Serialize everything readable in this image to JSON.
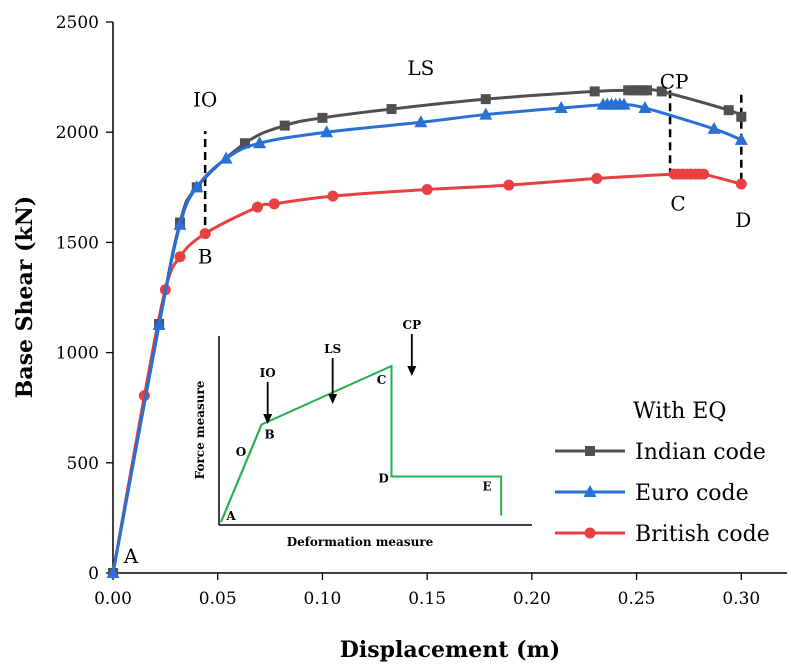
{
  "chart_data": {
    "type": "line",
    "title": "",
    "xlabel": "Displacement (m)",
    "ylabel": "Base Shear (kN)",
    "xlim": [
      0,
      0.32
    ],
    "ylim": [
      0,
      2500
    ],
    "xticks": [
      0.0,
      0.05,
      0.1,
      0.15,
      0.2,
      0.25,
      0.3
    ],
    "xtick_labels": [
      "0.00",
      "0.05",
      "0.10",
      "0.15",
      "0.20",
      "0.25",
      "0.30"
    ],
    "yticks": [
      0,
      500,
      1000,
      1500,
      2000,
      2500
    ],
    "ytick_labels": [
      "0",
      "500",
      "1000",
      "1500",
      "2000",
      "2500"
    ],
    "grid": false,
    "legend": {
      "title": "With EQ",
      "placement": "bottom-right"
    },
    "series": [
      {
        "name": "Indian code",
        "color": "#505050",
        "marker": "square",
        "x": [
          0.0,
          0.022,
          0.032,
          0.04,
          0.063,
          0.082,
          0.1,
          0.133,
          0.178,
          0.23,
          0.246,
          0.249,
          0.251,
          0.253,
          0.255,
          0.262,
          0.294,
          0.3
        ],
        "y": [
          0,
          1130,
          1590,
          1750,
          1950,
          2030,
          2065,
          2105,
          2150,
          2185,
          2190,
          2190,
          2190,
          2190,
          2190,
          2185,
          2100,
          2070
        ]
      },
      {
        "name": "Euro code",
        "color": "#2a6fd6",
        "marker": "triangle",
        "x": [
          0.0,
          0.022,
          0.032,
          0.04,
          0.054,
          0.07,
          0.102,
          0.147,
          0.178,
          0.214,
          0.234,
          0.236,
          0.238,
          0.24,
          0.242,
          0.244,
          0.254,
          0.287,
          0.3
        ],
        "y": [
          0,
          1125,
          1580,
          1750,
          1880,
          1950,
          2000,
          2045,
          2080,
          2110,
          2125,
          2125,
          2125,
          2125,
          2125,
          2125,
          2110,
          2015,
          1965
        ]
      },
      {
        "name": "British code",
        "color": "#e84040",
        "marker": "circle",
        "x": [
          0.0,
          0.015,
          0.025,
          0.032,
          0.044,
          0.069,
          0.077,
          0.105,
          0.15,
          0.189,
          0.231,
          0.268,
          0.27,
          0.272,
          0.274,
          0.276,
          0.278,
          0.28,
          0.282,
          0.3
        ],
        "y": [
          0,
          805,
          1285,
          1435,
          1540,
          1660,
          1675,
          1710,
          1740,
          1760,
          1790,
          1810,
          1810,
          1810,
          1810,
          1810,
          1810,
          1810,
          1810,
          1765
        ]
      }
    ],
    "annotations": [
      {
        "text": "A",
        "x": 0.0,
        "y": 0
      },
      {
        "text": "IO",
        "x": 0.044,
        "y": 2090
      },
      {
        "text": "B",
        "x": 0.044,
        "y": 1540
      },
      {
        "text": "LS",
        "x": 0.147,
        "y": 2260
      },
      {
        "text": "CP",
        "x": 0.266,
        "y": 2190
      },
      {
        "text": "C",
        "x": 0.266,
        "y": 1800
      },
      {
        "text": "D",
        "x": 0.3,
        "y": 1770
      }
    ],
    "dashed_lines": [
      {
        "x": 0.044,
        "y_from": 1520,
        "y_to": 2005
      },
      {
        "x": 0.266,
        "y_from": 1800,
        "y_to": 2190
      },
      {
        "x": 0.3,
        "y_from": 1780,
        "y_to": 2190
      }
    ],
    "inset": {
      "xlabel": "Deformation measure",
      "ylabel": "Force measure",
      "points": [
        {
          "label": "A",
          "x": 0,
          "y": 0
        },
        {
          "label": "B",
          "x": 1,
          "y": 0.75
        },
        {
          "label": "C",
          "x": 4.2,
          "y": 1.2
        },
        {
          "label": "D",
          "x": 4.2,
          "y": 0.35
        },
        {
          "label": "E",
          "x": 6.9,
          "y": 0.35
        },
        {
          "label": "",
          "x": 6.9,
          "y": 0.05
        }
      ],
      "segment_labels": [
        "O"
      ],
      "arrows": [
        "IO",
        "LS",
        "CP"
      ],
      "line_color": "#22b14c"
    }
  }
}
